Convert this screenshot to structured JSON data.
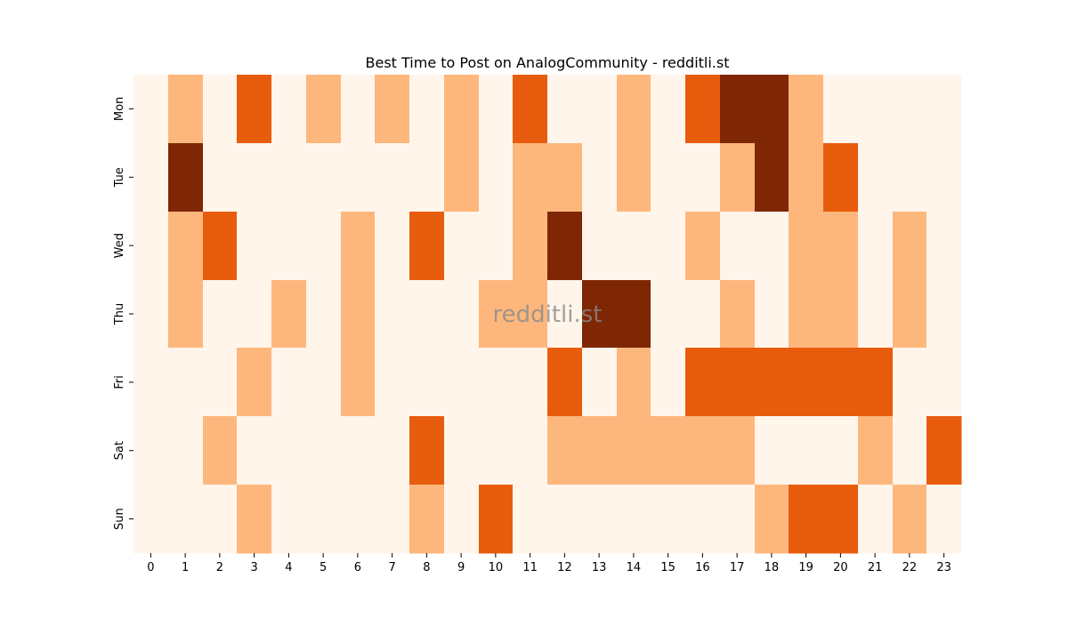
{
  "chart_data": {
    "type": "heatmap",
    "title": "Best Time to Post on AnalogCommunity - redditli.st",
    "xlabel": "",
    "ylabel": "",
    "x_categories": [
      "0",
      "1",
      "2",
      "3",
      "4",
      "5",
      "6",
      "7",
      "8",
      "9",
      "10",
      "11",
      "12",
      "13",
      "14",
      "15",
      "16",
      "17",
      "18",
      "19",
      "20",
      "21",
      "22",
      "23"
    ],
    "y_categories": [
      "Mon",
      "Tue",
      "Wed",
      "Thu",
      "Fri",
      "Sat",
      "Sun"
    ],
    "levels": [
      0,
      1,
      2,
      3
    ],
    "colors": [
      "#fff5eb",
      "#fdb77c",
      "#e85c0d",
      "#7f2704"
    ],
    "values": [
      [
        0,
        1,
        0,
        2,
        0,
        1,
        0,
        1,
        0,
        1,
        0,
        2,
        0,
        0,
        1,
        0,
        2,
        3,
        3,
        1,
        0,
        0,
        0,
        0
      ],
      [
        0,
        3,
        0,
        0,
        0,
        0,
        0,
        0,
        0,
        1,
        0,
        1,
        1,
        0,
        1,
        0,
        0,
        1,
        3,
        1,
        2,
        0,
        0,
        0
      ],
      [
        0,
        1,
        2,
        0,
        0,
        0,
        1,
        0,
        2,
        0,
        0,
        1,
        3,
        0,
        0,
        0,
        1,
        0,
        0,
        1,
        1,
        0,
        1,
        0
      ],
      [
        0,
        1,
        0,
        0,
        1,
        0,
        1,
        0,
        0,
        0,
        1,
        1,
        0,
        3,
        3,
        0,
        0,
        1,
        0,
        1,
        1,
        0,
        1,
        0
      ],
      [
        0,
        0,
        0,
        1,
        0,
        0,
        1,
        0,
        0,
        0,
        0,
        0,
        2,
        0,
        1,
        0,
        2,
        2,
        2,
        2,
        2,
        2,
        0,
        0
      ],
      [
        0,
        0,
        1,
        0,
        0,
        0,
        0,
        0,
        2,
        0,
        0,
        0,
        1,
        1,
        1,
        1,
        1,
        1,
        0,
        0,
        0,
        1,
        0,
        2
      ],
      [
        0,
        0,
        0,
        1,
        0,
        0,
        0,
        0,
        1,
        0,
        2,
        0,
        0,
        0,
        0,
        0,
        0,
        0,
        1,
        2,
        2,
        0,
        1,
        0
      ]
    ],
    "watermark": "redditli.st",
    "colorbar": false,
    "grid": false
  }
}
